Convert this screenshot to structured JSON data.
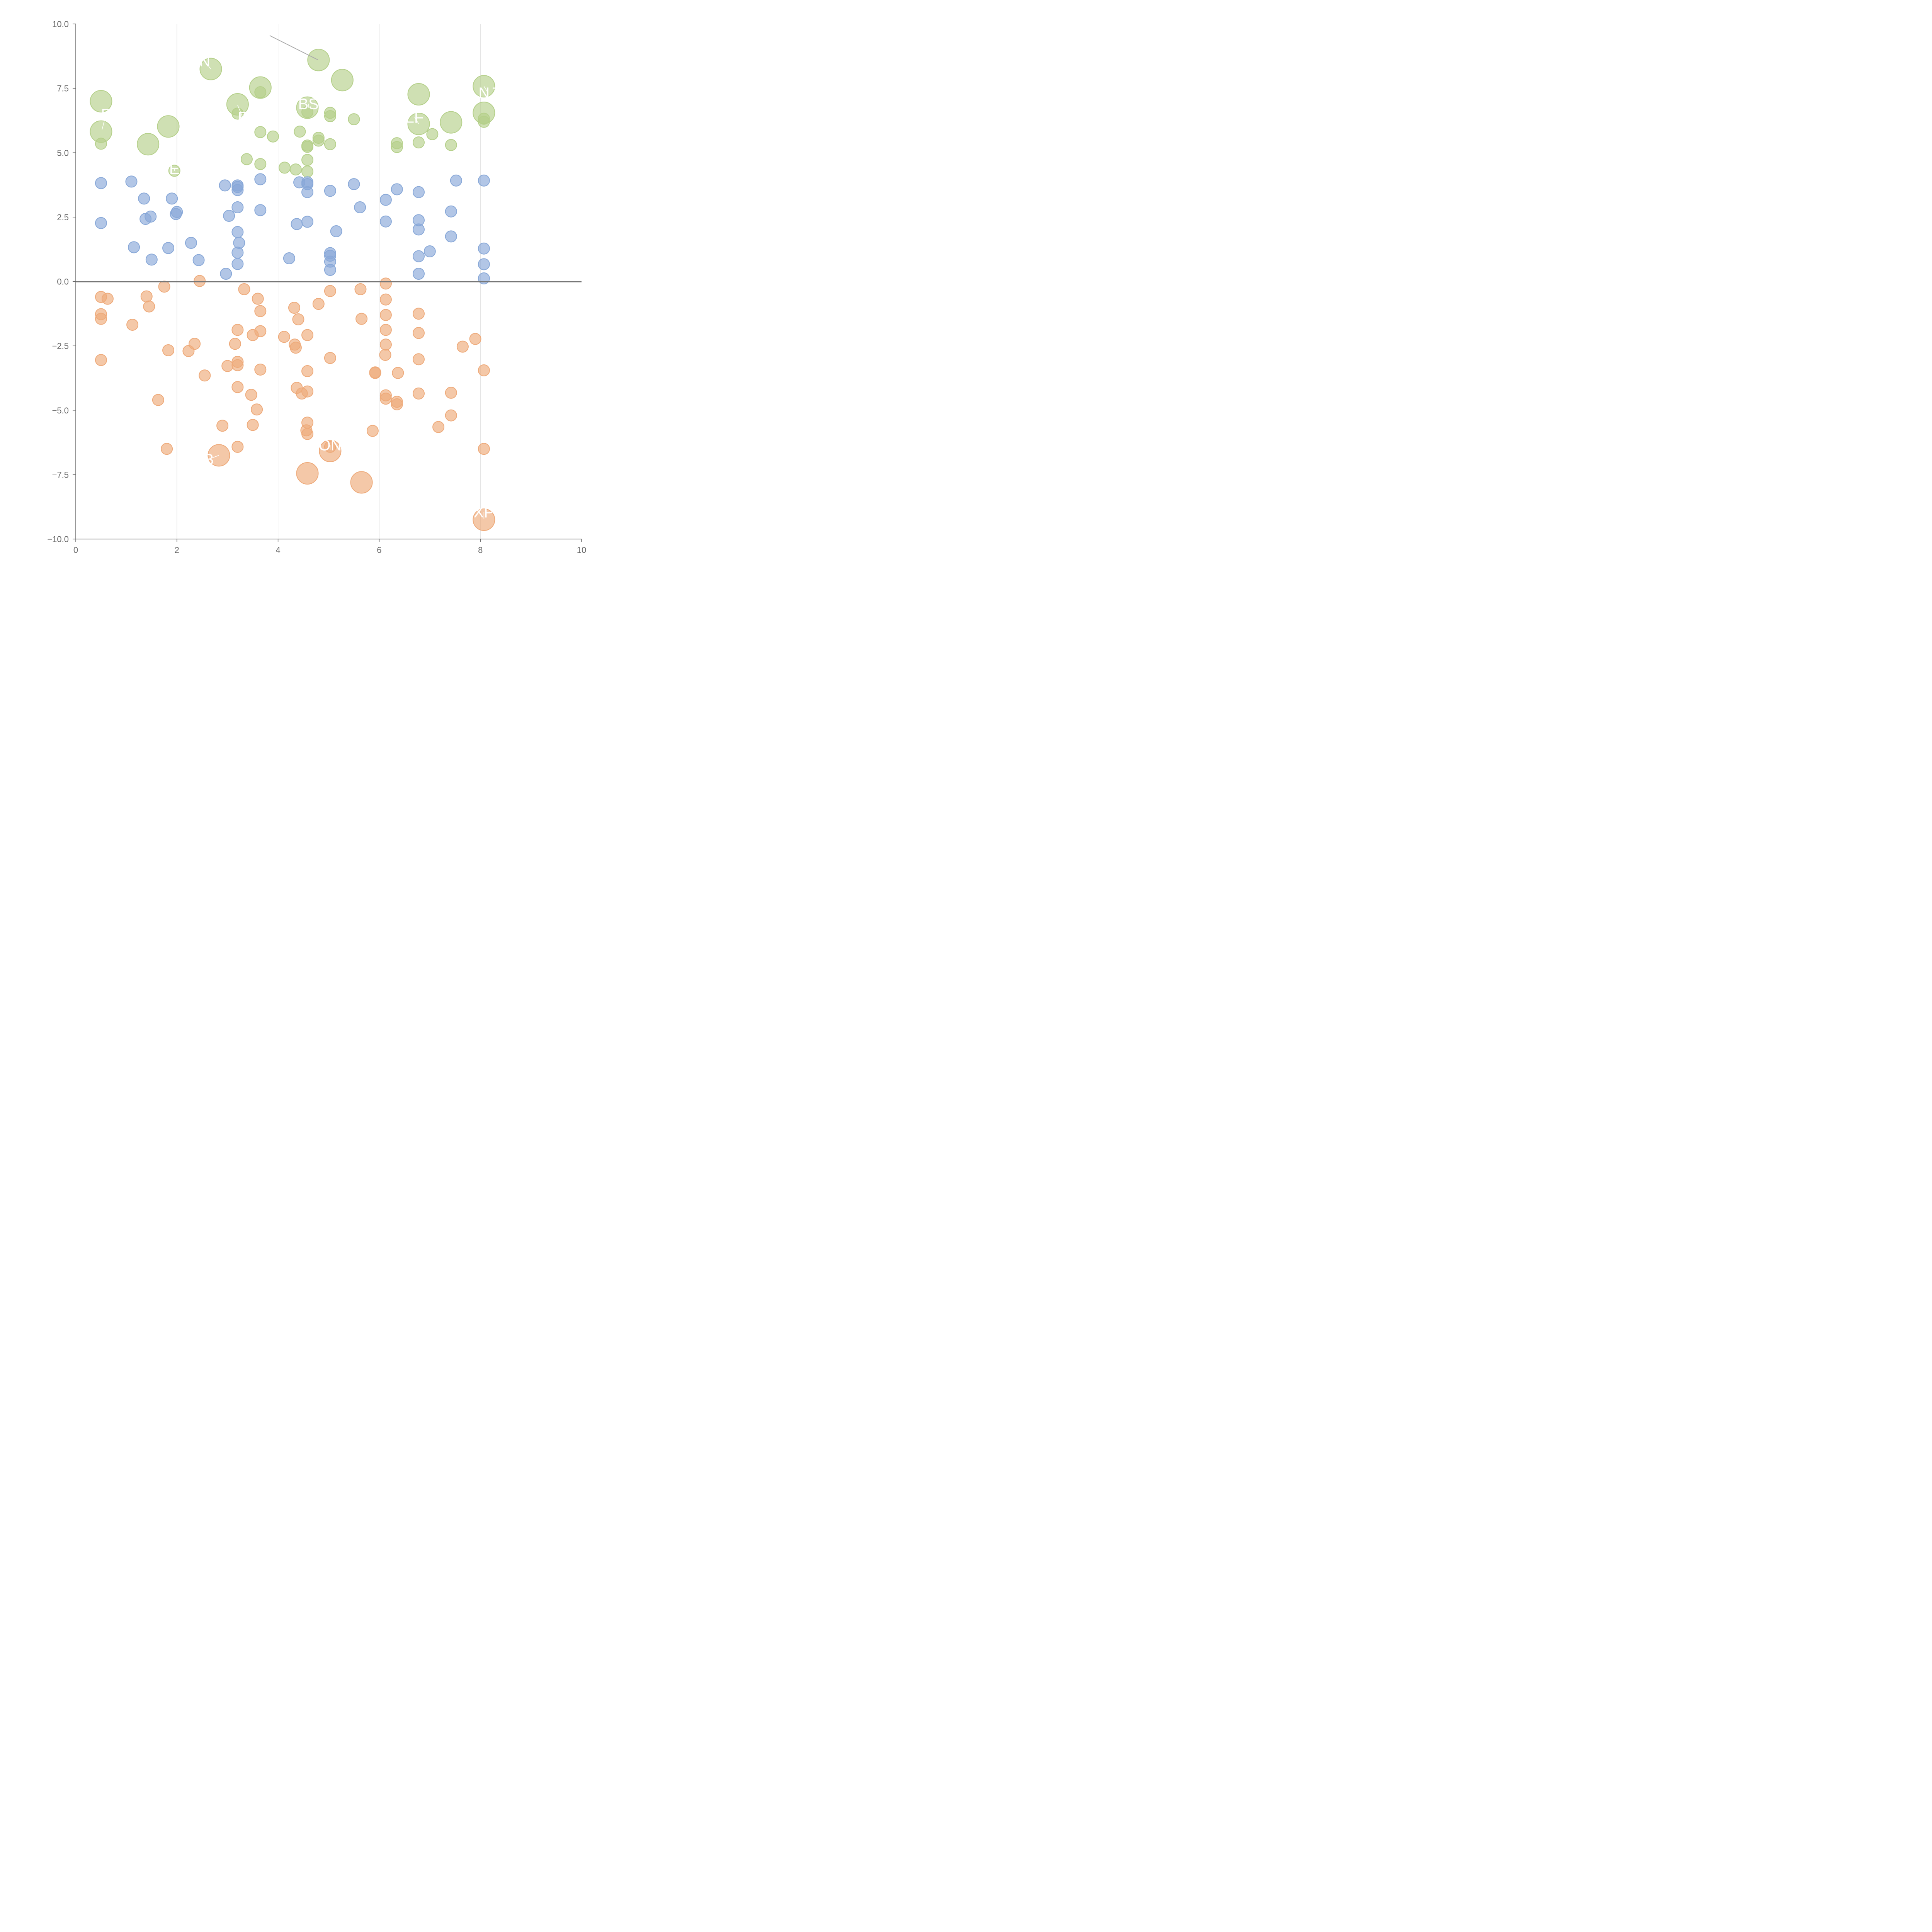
{
  "chart_data": {
    "type": "scatter",
    "title": "",
    "xlabel": "",
    "ylabel": "",
    "xlim": [
      0,
      10
    ],
    "ylim": [
      -10,
      10
    ],
    "x_ticks": [
      "0",
      "2",
      "4",
      "6",
      "8",
      "10"
    ],
    "y_ticks": [
      "−10.0",
      "−7.5",
      "−5.0",
      "−2.5",
      "0.0",
      "2.5",
      "5.0",
      "7.5",
      "10.0"
    ],
    "vertical_gridlines_at": [
      2,
      4,
      6,
      8
    ],
    "zero_line": true,
    "legend": "none",
    "colors": {
      "high": "#b5d08a",
      "mid": "#88a8d8",
      "low": "#eeaa7a",
      "axis": "#666666",
      "grid": "#dddddd",
      "zero_line": "#777777",
      "annotation": "#ffffff"
    },
    "series": [
      {
        "role": "high",
        "points": [
          [
            0.5,
            7.0,
            1
          ],
          [
            0.5,
            5.82,
            1
          ],
          [
            0.5,
            5.35,
            0
          ],
          [
            1.43,
            5.33,
            1
          ],
          [
            1.83,
            6.02,
            1
          ],
          [
            1.95,
            4.3,
            0
          ],
          [
            2.67,
            8.25,
            1
          ],
          [
            3.2,
            6.88,
            1
          ],
          [
            3.2,
            6.52,
            0
          ],
          [
            3.65,
            7.53,
            1
          ],
          [
            3.65,
            7.35,
            0
          ],
          [
            3.65,
            5.8,
            0
          ],
          [
            3.65,
            4.56,
            0
          ],
          [
            3.38,
            4.75,
            0
          ],
          [
            3.9,
            5.63,
            0
          ],
          [
            4.13,
            4.42,
            0
          ],
          [
            4.35,
            4.35,
            0
          ],
          [
            4.43,
            5.82,
            0
          ],
          [
            4.58,
            6.75,
            1
          ],
          [
            4.58,
            6.58,
            0
          ],
          [
            4.58,
            5.28,
            0
          ],
          [
            4.58,
            5.23,
            0
          ],
          [
            4.58,
            4.72,
            0
          ],
          [
            4.58,
            4.27,
            0
          ],
          [
            4.8,
            8.6,
            1
          ],
          [
            4.8,
            5.58,
            0
          ],
          [
            4.8,
            5.47,
            0
          ],
          [
            5.03,
            6.55,
            0
          ],
          [
            5.03,
            6.42,
            0
          ],
          [
            5.03,
            5.33,
            0
          ],
          [
            5.27,
            7.82,
            1
          ],
          [
            5.5,
            6.3,
            0
          ],
          [
            6.35,
            5.37,
            0
          ],
          [
            6.35,
            5.22,
            0
          ],
          [
            6.78,
            7.27,
            1
          ],
          [
            6.78,
            6.12,
            1
          ],
          [
            6.78,
            5.4,
            0
          ],
          [
            7.05,
            5.72,
            0
          ],
          [
            7.42,
            6.18,
            1
          ],
          [
            7.42,
            5.3,
            0
          ],
          [
            8.07,
            7.58,
            1
          ],
          [
            8.07,
            6.55,
            1
          ],
          [
            8.07,
            6.32,
            0
          ],
          [
            8.07,
            6.2,
            0
          ]
        ]
      },
      {
        "role": "mid",
        "points": [
          [
            0.5,
            3.82,
            0
          ],
          [
            0.5,
            2.27,
            0
          ],
          [
            1.1,
            3.88,
            0
          ],
          [
            1.15,
            1.33,
            0
          ],
          [
            1.35,
            3.22,
            0
          ],
          [
            1.38,
            2.43,
            0
          ],
          [
            1.48,
            2.52,
            0
          ],
          [
            1.5,
            0.85,
            0
          ],
          [
            1.83,
            1.3,
            0
          ],
          [
            1.9,
            3.22,
            0
          ],
          [
            1.98,
            2.62,
            0
          ],
          [
            2.0,
            2.7,
            0
          ],
          [
            2.28,
            1.5,
            0
          ],
          [
            2.43,
            0.83,
            0
          ],
          [
            2.95,
            3.73,
            0
          ],
          [
            2.97,
            0.3,
            0
          ],
          [
            3.03,
            2.55,
            0
          ],
          [
            3.2,
            3.73,
            0
          ],
          [
            3.2,
            3.67,
            0
          ],
          [
            3.2,
            3.55,
            0
          ],
          [
            3.2,
            2.88,
            0
          ],
          [
            3.2,
            1.92,
            0
          ],
          [
            3.23,
            1.5,
            0
          ],
          [
            3.2,
            1.12,
            0
          ],
          [
            3.2,
            0.68,
            0
          ],
          [
            3.65,
            3.97,
            0
          ],
          [
            3.65,
            2.77,
            0
          ],
          [
            4.22,
            0.9,
            0
          ],
          [
            4.37,
            2.23,
            0
          ],
          [
            4.42,
            3.85,
            0
          ],
          [
            4.58,
            3.85,
            0
          ],
          [
            4.58,
            3.78,
            0
          ],
          [
            4.58,
            3.47,
            0
          ],
          [
            4.58,
            2.32,
            0
          ],
          [
            5.03,
            3.52,
            0
          ],
          [
            5.03,
            1.1,
            0
          ],
          [
            5.03,
            1.0,
            0
          ],
          [
            5.03,
            0.77,
            0
          ],
          [
            5.03,
            0.45,
            0
          ],
          [
            5.15,
            1.95,
            0
          ],
          [
            5.5,
            3.78,
            0
          ],
          [
            5.62,
            2.88,
            0
          ],
          [
            6.13,
            3.17,
            0
          ],
          [
            6.13,
            2.33,
            0
          ],
          [
            6.35,
            3.58,
            0
          ],
          [
            6.78,
            3.47,
            0
          ],
          [
            6.78,
            2.38,
            0
          ],
          [
            6.78,
            2.02,
            0
          ],
          [
            6.78,
            0.98,
            0
          ],
          [
            6.78,
            0.3,
            0
          ],
          [
            7.0,
            1.17,
            0
          ],
          [
            7.42,
            2.72,
            0
          ],
          [
            7.42,
            1.75,
            0
          ],
          [
            7.52,
            3.92,
            0
          ],
          [
            8.07,
            3.92,
            0
          ],
          [
            8.07,
            1.28,
            0
          ],
          [
            8.07,
            0.67,
            0
          ],
          [
            8.07,
            0.12,
            0
          ]
        ]
      },
      {
        "role": "low",
        "points": [
          [
            0.5,
            -0.6,
            0
          ],
          [
            0.5,
            -1.27,
            0
          ],
          [
            0.5,
            -1.45,
            0
          ],
          [
            0.5,
            -3.05,
            0
          ],
          [
            0.63,
            -0.67,
            0
          ],
          [
            1.12,
            -1.68,
            0
          ],
          [
            1.4,
            -0.58,
            0
          ],
          [
            1.45,
            -0.97,
            0
          ],
          [
            1.63,
            -4.6,
            0
          ],
          [
            1.75,
            -0.2,
            0
          ],
          [
            1.8,
            -6.5,
            0
          ],
          [
            1.83,
            -2.67,
            0
          ],
          [
            2.23,
            -2.7,
            0
          ],
          [
            2.35,
            -2.42,
            0
          ],
          [
            2.45,
            0.02,
            0
          ],
          [
            2.55,
            -3.65,
            0
          ],
          [
            2.83,
            -6.75,
            1
          ],
          [
            2.9,
            -5.6,
            0
          ],
          [
            3.0,
            -3.28,
            0
          ],
          [
            3.15,
            -2.42,
            0
          ],
          [
            3.2,
            -1.88,
            0
          ],
          [
            3.2,
            -3.12,
            0
          ],
          [
            3.2,
            -3.25,
            0
          ],
          [
            3.2,
            -4.1,
            0
          ],
          [
            3.2,
            -6.42,
            0
          ],
          [
            3.33,
            -0.3,
            0
          ],
          [
            3.47,
            -4.4,
            0
          ],
          [
            3.5,
            -2.08,
            0
          ],
          [
            3.5,
            -5.57,
            0
          ],
          [
            3.58,
            -4.97,
            0
          ],
          [
            3.6,
            -0.67,
            0
          ],
          [
            3.65,
            -1.15,
            0
          ],
          [
            3.65,
            -1.93,
            0
          ],
          [
            3.65,
            -3.42,
            0
          ],
          [
            4.12,
            -2.15,
            0
          ],
          [
            4.32,
            -1.02,
            0
          ],
          [
            4.33,
            -2.45,
            0
          ],
          [
            4.35,
            -2.57,
            0
          ],
          [
            4.37,
            -4.13,
            0
          ],
          [
            4.4,
            -1.47,
            0
          ],
          [
            4.47,
            -4.35,
            0
          ],
          [
            4.58,
            -2.08,
            0
          ],
          [
            4.58,
            -3.48,
            0
          ],
          [
            4.58,
            -4.27,
            0
          ],
          [
            4.58,
            -5.48,
            0
          ],
          [
            4.56,
            -5.78,
            0
          ],
          [
            4.58,
            -5.92,
            0
          ],
          [
            4.58,
            -7.45,
            1
          ],
          [
            4.8,
            -0.87,
            0
          ],
          [
            5.03,
            -0.37,
            0
          ],
          [
            5.03,
            -2.97,
            0
          ],
          [
            5.03,
            -6.42,
            0
          ],
          [
            5.03,
            -6.58,
            1
          ],
          [
            5.63,
            -0.3,
            0
          ],
          [
            5.65,
            -1.45,
            0
          ],
          [
            5.65,
            -7.8,
            1
          ],
          [
            5.87,
            -5.8,
            0
          ],
          [
            5.92,
            -3.53,
            0
          ],
          [
            5.92,
            -3.55,
            0
          ],
          [
            6.13,
            -0.08,
            0
          ],
          [
            6.13,
            -0.7,
            0
          ],
          [
            6.13,
            -1.3,
            0
          ],
          [
            6.13,
            -1.88,
            0
          ],
          [
            6.13,
            -2.45,
            0
          ],
          [
            6.12,
            -2.85,
            0
          ],
          [
            6.13,
            -4.42,
            0
          ],
          [
            6.13,
            -4.55,
            0
          ],
          [
            6.37,
            -3.55,
            0
          ],
          [
            6.35,
            -4.67,
            0
          ],
          [
            6.35,
            -4.77,
            0
          ],
          [
            6.78,
            -1.25,
            0
          ],
          [
            6.78,
            -2.0,
            0
          ],
          [
            6.78,
            -3.02,
            0
          ],
          [
            6.78,
            -4.35,
            0
          ],
          [
            7.17,
            -5.65,
            0
          ],
          [
            7.42,
            -4.32,
            0
          ],
          [
            7.42,
            -5.2,
            0
          ],
          [
            7.65,
            -2.53,
            0
          ],
          [
            7.9,
            -2.23,
            0
          ],
          [
            8.07,
            -3.45,
            0
          ],
          [
            8.07,
            -6.5,
            0
          ],
          [
            8.07,
            -9.25,
            1
          ]
        ]
      }
    ],
    "annotations": [
      {
        "text": "N",
        "x": 2.55,
        "y": 8.57,
        "px": 2.67,
        "py": 8.25
      },
      {
        "text": "P",
        "x": 0.6,
        "y": 6.5,
        "px": 0.52,
        "py": 5.9
      },
      {
        "text": "F",
        "x": 3.3,
        "y": 6.38,
        "px": 3.2,
        "py": 6.85
      },
      {
        "text": "BS",
        "x": 4.6,
        "y": 6.9,
        "px": 4.6,
        "py": 6.75
      },
      {
        "text": "E",
        "x": 1.95,
        "y": 4.38,
        "px": 1.95,
        "py": 4.3
      },
      {
        "text": "NJ",
        "x": 8.15,
        "y": 7.33,
        "px": 8.07,
        "py": 7.58
      },
      {
        "text": "LF",
        "x": 6.7,
        "y": 6.38,
        "px": 6.78,
        "py": 6.12
      },
      {
        "text": "ON",
        "x": 5.03,
        "y": -6.35,
        "px": 5.03,
        "py": -6.55
      },
      {
        "text": "B",
        "x": 2.63,
        "y": -6.9,
        "px": 2.83,
        "py": -6.75
      },
      {
        "text": "XP",
        "x": 8.07,
        "y": -8.95,
        "px": 8.07,
        "py": -9.22
      }
    ]
  }
}
